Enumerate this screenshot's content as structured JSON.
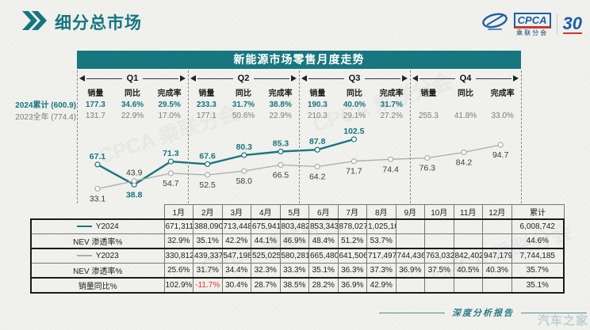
{
  "page": {
    "title": "细分总市场",
    "footer_label": "深度分析报告",
    "corner_watermark": "汽车之家",
    "background_watermark": "CPCA 乘联分会"
  },
  "logos": {
    "cpca": "CPCA",
    "cpca_sub": "乘联分会",
    "anniversary": "30"
  },
  "panel": {
    "title": "新能源市场零售月度走势",
    "row_label_2024": "2024累计 (600.9)",
    "row_label_2023": "2023全年 (774.4)",
    "stat_headers": [
      "销量",
      "同比",
      "完成率"
    ],
    "quarters": [
      {
        "label": "Q1",
        "y2024": [
          "177.3",
          "34.6%",
          "29.5%"
        ],
        "y2023": [
          "131.7",
          "22.9%",
          "17.0%"
        ]
      },
      {
        "label": "Q2",
        "y2024": [
          "233.3",
          "31.7%",
          "38.8%"
        ],
        "y2023": [
          "177.1",
          "50.6%",
          "22.9%"
        ]
      },
      {
        "label": "Q3",
        "y2024": [
          "190.3",
          "40.0%",
          "31.7%"
        ],
        "y2023": [
          "210.3",
          "29.1%",
          "27.2%"
        ]
      },
      {
        "label": "Q4",
        "y2024": [
          "",
          "",
          ""
        ],
        "y2023": [
          "255.3",
          "41.8%",
          "33.0%"
        ]
      }
    ]
  },
  "chart_data": {
    "type": "line",
    "title": "新能源市场零售月度走势",
    "x": [
      "1月",
      "2月",
      "3月",
      "4月",
      "5月",
      "6月",
      "7月",
      "8月",
      "9月",
      "10月",
      "11月",
      "12月"
    ],
    "series": [
      {
        "name": "Y2024",
        "color": "#17767E",
        "values": [
          67.1,
          38.8,
          71.3,
          67.6,
          80.3,
          85.3,
          87.8,
          102.5
        ]
      },
      {
        "name": "Y2023",
        "color": "#A9ADAD",
        "values": [
          33.1,
          43.9,
          54.7,
          52.5,
          58.0,
          66.5,
          64.2,
          71.7,
          74.4,
          76.3,
          84.2,
          94.7
        ]
      }
    ],
    "ylim": [
      30,
      110
    ],
    "grid": false,
    "legend_position": "table-left",
    "quarter_markers": [
      "Q1",
      "Q2",
      "Q3",
      "Q4"
    ]
  },
  "table": {
    "columns": [
      "1月",
      "2月",
      "3月",
      "4月",
      "5月",
      "6月",
      "7月",
      "8月",
      "9月",
      "10月",
      "11月",
      "12月",
      "累计"
    ],
    "rows": [
      {
        "label": "Y2024",
        "legend_color": "#17767E",
        "cells": [
          "671,311",
          "388,090",
          "713,448",
          "675,941",
          "803,482",
          "853,343",
          "878,027",
          "1,025,100",
          "",
          "",
          "",
          "",
          "6,008,742"
        ]
      },
      {
        "label": "NEV 渗透率%",
        "cells": [
          "32.9%",
          "35.1%",
          "42.2%",
          "44.1%",
          "46.9%",
          "48.4%",
          "51.2%",
          "53.7%",
          "",
          "",
          "",
          "",
          "44.6%"
        ]
      },
      {
        "label": "Y2023",
        "legend_color": "#A9ADAD",
        "cells": [
          "330,812",
          "439,337",
          "547,198",
          "525,025",
          "580,281",
          "665,480",
          "641,506",
          "717,497",
          "744,436",
          "763,032",
          "842,402",
          "947,179",
          "7,744,185"
        ]
      },
      {
        "label": "NEV 渗透率%",
        "cells": [
          "25.6%",
          "31.7%",
          "34.4%",
          "32.3%",
          "33.3%",
          "35.1%",
          "36.3%",
          "37.3%",
          "36.9%",
          "37.5%",
          "40.5%",
          "40.3%",
          "35.7%"
        ]
      },
      {
        "label": "销量同比%",
        "cells": [
          "102.9%",
          "-11.7%",
          "30.4%",
          "28.7%",
          "38.5%",
          "28.2%",
          "36.9%",
          "42.9%",
          "",
          "",
          "",
          "",
          "35.1%"
        ]
      }
    ]
  },
  "colors": {
    "accent_teal": "#17767E",
    "gray_line": "#A9ADAD",
    "negative_red": "#E8342A",
    "logo_blue": "#1B5FA8"
  }
}
